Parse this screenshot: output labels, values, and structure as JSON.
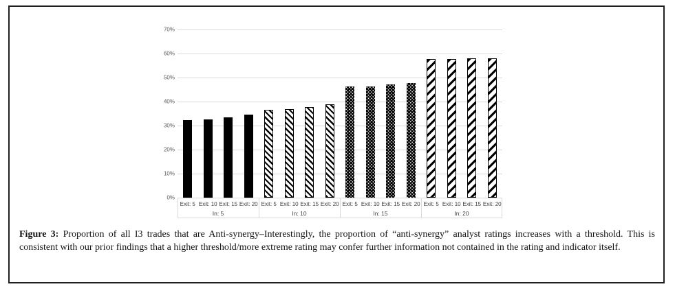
{
  "page": {
    "background": "#ffffff",
    "frame_border_color": "#1f1f1f"
  },
  "caption": {
    "label": "Figure 3:",
    "text": "Proportion of all I3 trades that are Anti-synergy–Interestingly, the proportion of “anti-synergy” analyst ratings increases with a threshold. This is consistent with our prior findings that a higher threshold/more extreme rating may confer further information not contained in the rating and indicator itself."
  },
  "chart_data": {
    "type": "bar",
    "title": "",
    "xlabel": "",
    "ylabel": "",
    "ylim": [
      0,
      70
    ],
    "grid": true,
    "legend": "none",
    "bar_color": "#000000",
    "gridline_color": "#d9d9d9",
    "y_ticks": [
      {
        "value": 0,
        "label": "0%"
      },
      {
        "value": 10,
        "label": "10%"
      },
      {
        "value": 20,
        "label": "20%"
      },
      {
        "value": 30,
        "label": "30%"
      },
      {
        "value": 40,
        "label": "40%"
      },
      {
        "value": 50,
        "label": "50%"
      },
      {
        "value": 60,
        "label": "60%"
      },
      {
        "value": 70,
        "label": "70%"
      }
    ],
    "groups": [
      {
        "label": "In: 5",
        "pattern": "solid",
        "bars": [
          {
            "label": "Exit: 5",
            "value": 32.3
          },
          {
            "label": "Exit: 10",
            "value": 32.5
          },
          {
            "label": "Exit: 15",
            "value": 33.4
          },
          {
            "label": "Exit: 20",
            "value": 34.7
          }
        ]
      },
      {
        "label": "In: 10",
        "pattern": "diag-thin",
        "bars": [
          {
            "label": "Exit: 5",
            "value": 36.7
          },
          {
            "label": "Exit: 10",
            "value": 37.0
          },
          {
            "label": "Exit: 15",
            "value": 37.8
          },
          {
            "label": "Exit: 20",
            "value": 38.8
          }
        ]
      },
      {
        "label": "In: 15",
        "pattern": "dots",
        "bars": [
          {
            "label": "Exit: 5",
            "value": 46.4
          },
          {
            "label": "Exit: 10",
            "value": 46.4
          },
          {
            "label": "Exit: 15",
            "value": 47.2
          },
          {
            "label": "Exit: 20",
            "value": 47.8
          }
        ]
      },
      {
        "label": "In: 20",
        "pattern": "diag-wide",
        "bars": [
          {
            "label": "Exit: 5",
            "value": 57.6
          },
          {
            "label": "Exit: 10",
            "value": 57.6
          },
          {
            "label": "Exit: 15",
            "value": 58.1
          },
          {
            "label": "Exit: 20",
            "value": 58.1
          }
        ]
      }
    ]
  }
}
